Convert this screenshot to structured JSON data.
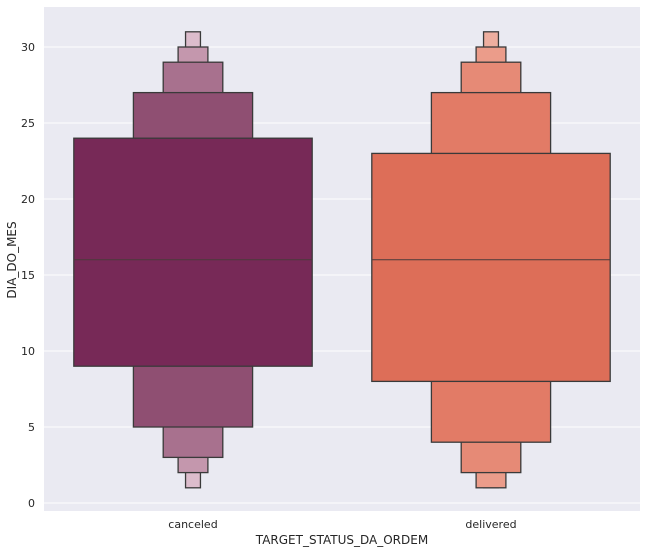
{
  "chart_data": {
    "type": "boxen",
    "xlabel": "TARGET_STATUS_DA_ORDEM",
    "ylabel": "DIA_DO_MES",
    "ylim": [
      -0.5,
      32.5
    ],
    "yticks": [
      0,
      5,
      10,
      15,
      20,
      25,
      30
    ],
    "grid": true,
    "background": "#eaeaf2",
    "categories": [
      "canceled",
      "delivered"
    ],
    "series": [
      {
        "category": "canceled",
        "median": 16,
        "colors": [
          "#772957",
          "#8f4f72",
          "#a8718e",
          "#c497ad",
          "#dcbccc"
        ],
        "boxes": [
          {
            "low": 9,
            "high": 24
          },
          {
            "low": 5,
            "high": 27
          },
          {
            "low": 3,
            "high": 29
          },
          {
            "low": 2,
            "high": 30
          },
          {
            "low": 1,
            "high": 31
          }
        ]
      },
      {
        "category": "delivered",
        "median": 16,
        "colors": [
          "#dd6e58",
          "#e27b66",
          "#e68a76",
          "#eb9c8a",
          "#eeae9f"
        ],
        "boxes": [
          {
            "low": 8,
            "high": 23
          },
          {
            "low": 4,
            "high": 27
          },
          {
            "low": 2,
            "high": 29
          },
          {
            "low": 1,
            "high": 30
          },
          {
            "low": 1,
            "high": 31
          }
        ]
      }
    ]
  }
}
